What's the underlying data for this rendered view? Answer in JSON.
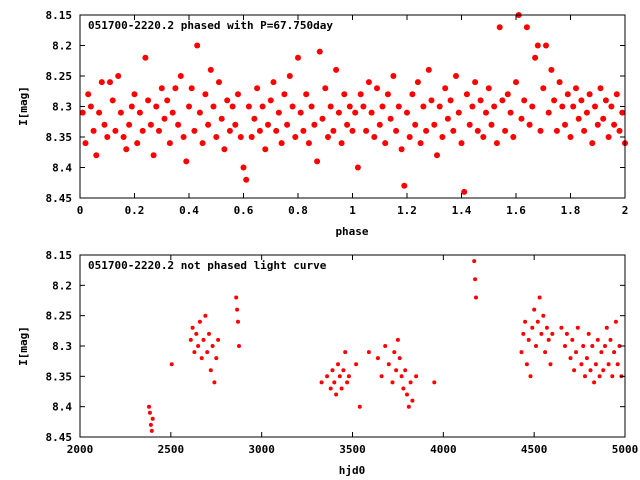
{
  "chart_data": [
    {
      "type": "scatter",
      "title": "051700-2220.2 phased with P=67.750day",
      "xlabel": "phase",
      "ylabel": "I[mag]",
      "xlim": [
        0,
        2
      ],
      "ylim": [
        8.45,
        8.15
      ],
      "y_inverted": true,
      "xticks": [
        "0",
        "0.2",
        "0.4",
        "0.6",
        "0.8",
        "1",
        "1.2",
        "1.4",
        "1.6",
        "1.8",
        "2"
      ],
      "yticks": [
        "8.15",
        "8.2",
        "8.25",
        "8.3",
        "8.35",
        "8.4",
        "8.45"
      ],
      "marker": "dot-large",
      "color": "#ff0000",
      "points": [
        [
          0.01,
          8.31
        ],
        [
          0.02,
          8.36
        ],
        [
          0.03,
          8.28
        ],
        [
          0.04,
          8.3
        ],
        [
          0.05,
          8.34
        ],
        [
          0.06,
          8.38
        ],
        [
          0.07,
          8.31
        ],
        [
          0.08,
          8.26
        ],
        [
          0.09,
          8.33
        ],
        [
          0.1,
          8.35
        ],
        [
          0.11,
          8.26
        ],
        [
          0.12,
          8.29
        ],
        [
          0.13,
          8.34
        ],
        [
          0.14,
          8.25
        ],
        [
          0.15,
          8.31
        ],
        [
          0.16,
          8.35
        ],
        [
          0.17,
          8.37
        ],
        [
          0.18,
          8.33
        ],
        [
          0.19,
          8.3
        ],
        [
          0.2,
          8.28
        ],
        [
          0.21,
          8.36
        ],
        [
          0.22,
          8.31
        ],
        [
          0.23,
          8.34
        ],
        [
          0.24,
          8.22
        ],
        [
          0.25,
          8.29
        ],
        [
          0.26,
          8.33
        ],
        [
          0.27,
          8.38
        ],
        [
          0.28,
          8.3
        ],
        [
          0.29,
          8.34
        ],
        [
          0.3,
          8.27
        ],
        [
          0.31,
          8.32
        ],
        [
          0.32,
          8.29
        ],
        [
          0.33,
          8.36
        ],
        [
          0.34,
          8.31
        ],
        [
          0.35,
          8.27
        ],
        [
          0.36,
          8.33
        ],
        [
          0.37,
          8.25
        ],
        [
          0.38,
          8.35
        ],
        [
          0.39,
          8.39
        ],
        [
          0.4,
          8.3
        ],
        [
          0.41,
          8.27
        ],
        [
          0.42,
          8.34
        ],
        [
          0.43,
          8.2
        ],
        [
          0.44,
          8.31
        ],
        [
          0.45,
          8.36
        ],
        [
          0.46,
          8.28
        ],
        [
          0.47,
          8.33
        ],
        [
          0.48,
          8.24
        ],
        [
          0.49,
          8.3
        ],
        [
          0.5,
          8.35
        ],
        [
          0.51,
          8.26
        ],
        [
          0.52,
          8.32
        ],
        [
          0.53,
          8.37
        ],
        [
          0.54,
          8.29
        ],
        [
          0.55,
          8.34
        ],
        [
          0.56,
          8.3
        ],
        [
          0.57,
          8.33
        ],
        [
          0.58,
          8.28
        ],
        [
          0.59,
          8.35
        ],
        [
          0.6,
          8.4
        ],
        [
          0.61,
          8.42
        ],
        [
          0.62,
          8.3
        ],
        [
          0.63,
          8.35
        ],
        [
          0.64,
          8.32
        ],
        [
          0.65,
          8.27
        ],
        [
          0.66,
          8.34
        ],
        [
          0.67,
          8.3
        ],
        [
          0.68,
          8.37
        ],
        [
          0.69,
          8.33
        ],
        [
          0.7,
          8.29
        ],
        [
          0.71,
          8.26
        ],
        [
          0.72,
          8.34
        ],
        [
          0.73,
          8.31
        ],
        [
          0.74,
          8.36
        ],
        [
          0.75,
          8.28
        ],
        [
          0.76,
          8.33
        ],
        [
          0.77,
          8.25
        ],
        [
          0.78,
          8.3
        ],
        [
          0.79,
          8.35
        ],
        [
          0.8,
          8.22
        ],
        [
          0.81,
          8.31
        ],
        [
          0.82,
          8.34
        ],
        [
          0.83,
          8.28
        ],
        [
          0.84,
          8.36
        ],
        [
          0.85,
          8.3
        ],
        [
          0.86,
          8.33
        ],
        [
          0.87,
          8.39
        ],
        [
          0.88,
          8.21
        ],
        [
          0.89,
          8.32
        ],
        [
          0.9,
          8.27
        ],
        [
          0.91,
          8.35
        ],
        [
          0.92,
          8.3
        ],
        [
          0.93,
          8.34
        ],
        [
          0.94,
          8.24
        ],
        [
          0.95,
          8.31
        ],
        [
          0.96,
          8.36
        ],
        [
          0.97,
          8.28
        ],
        [
          0.98,
          8.33
        ],
        [
          0.99,
          8.3
        ],
        [
          1.0,
          8.34
        ],
        [
          1.01,
          8.31
        ],
        [
          1.02,
          8.4
        ],
        [
          1.03,
          8.28
        ],
        [
          1.04,
          8.3
        ],
        [
          1.05,
          8.34
        ],
        [
          1.06,
          8.26
        ],
        [
          1.07,
          8.31
        ],
        [
          1.08,
          8.35
        ],
        [
          1.09,
          8.27
        ],
        [
          1.1,
          8.33
        ],
        [
          1.11,
          8.3
        ],
        [
          1.12,
          8.36
        ],
        [
          1.13,
          8.28
        ],
        [
          1.14,
          8.32
        ],
        [
          1.15,
          8.25
        ],
        [
          1.16,
          8.34
        ],
        [
          1.17,
          8.3
        ],
        [
          1.18,
          8.37
        ],
        [
          1.19,
          8.43
        ],
        [
          1.2,
          8.31
        ],
        [
          1.21,
          8.35
        ],
        [
          1.22,
          8.28
        ],
        [
          1.23,
          8.33
        ],
        [
          1.24,
          8.26
        ],
        [
          1.25,
          8.36
        ],
        [
          1.26,
          8.3
        ],
        [
          1.27,
          8.34
        ],
        [
          1.28,
          8.24
        ],
        [
          1.29,
          8.29
        ],
        [
          1.3,
          8.33
        ],
        [
          1.31,
          8.38
        ],
        [
          1.32,
          8.3
        ],
        [
          1.33,
          8.35
        ],
        [
          1.34,
          8.27
        ],
        [
          1.35,
          8.32
        ],
        [
          1.36,
          8.29
        ],
        [
          1.37,
          8.34
        ],
        [
          1.38,
          8.25
        ],
        [
          1.39,
          8.31
        ],
        [
          1.4,
          8.36
        ],
        [
          1.41,
          8.44
        ],
        [
          1.42,
          8.28
        ],
        [
          1.43,
          8.33
        ],
        [
          1.44,
          8.3
        ],
        [
          1.45,
          8.26
        ],
        [
          1.46,
          8.34
        ],
        [
          1.47,
          8.29
        ],
        [
          1.48,
          8.35
        ],
        [
          1.49,
          8.31
        ],
        [
          1.5,
          8.27
        ],
        [
          1.51,
          8.33
        ],
        [
          1.52,
          8.3
        ],
        [
          1.53,
          8.36
        ],
        [
          1.54,
          8.17
        ],
        [
          1.55,
          8.29
        ],
        [
          1.56,
          8.34
        ],
        [
          1.57,
          8.28
        ],
        [
          1.58,
          8.31
        ],
        [
          1.59,
          8.35
        ],
        [
          1.6,
          8.26
        ],
        [
          1.61,
          8.15
        ],
        [
          1.62,
          8.32
        ],
        [
          1.63,
          8.29
        ],
        [
          1.64,
          8.17
        ],
        [
          1.65,
          8.33
        ],
        [
          1.66,
          8.3
        ],
        [
          1.67,
          8.22
        ],
        [
          1.68,
          8.2
        ],
        [
          1.69,
          8.34
        ],
        [
          1.7,
          8.27
        ],
        [
          1.71,
          8.2
        ],
        [
          1.72,
          8.31
        ],
        [
          1.73,
          8.24
        ],
        [
          1.74,
          8.29
        ],
        [
          1.75,
          8.34
        ],
        [
          1.76,
          8.26
        ],
        [
          1.77,
          8.3
        ],
        [
          1.78,
          8.33
        ],
        [
          1.79,
          8.28
        ],
        [
          1.8,
          8.35
        ],
        [
          1.81,
          8.3
        ],
        [
          1.82,
          8.27
        ],
        [
          1.83,
          8.32
        ],
        [
          1.84,
          8.29
        ],
        [
          1.85,
          8.34
        ],
        [
          1.86,
          8.31
        ],
        [
          1.87,
          8.28
        ],
        [
          1.88,
          8.36
        ],
        [
          1.89,
          8.3
        ],
        [
          1.9,
          8.33
        ],
        [
          1.91,
          8.27
        ],
        [
          1.92,
          8.32
        ],
        [
          1.93,
          8.29
        ],
        [
          1.94,
          8.35
        ],
        [
          1.95,
          8.3
        ],
        [
          1.96,
          8.33
        ],
        [
          1.97,
          8.28
        ],
        [
          1.98,
          8.34
        ],
        [
          1.99,
          8.31
        ],
        [
          2.0,
          8.36
        ]
      ]
    },
    {
      "type": "scatter",
      "title": "051700-2220.2 not phased light curve",
      "xlabel": "hjd0",
      "ylabel": "I[mag]",
      "xlim": [
        2000,
        5000
      ],
      "ylim": [
        8.45,
        8.15
      ],
      "y_inverted": true,
      "xticks": [
        "2000",
        "2500",
        "3000",
        "3500",
        "4000",
        "4500",
        "5000"
      ],
      "yticks": [
        "8.15",
        "8.2",
        "8.25",
        "8.3",
        "8.35",
        "8.4",
        "8.45"
      ],
      "marker": "dot-small",
      "color": "#ff0000",
      "points": [
        [
          2380,
          8.4
        ],
        [
          2385,
          8.41
        ],
        [
          2390,
          8.43
        ],
        [
          2395,
          8.44
        ],
        [
          2400,
          8.42
        ],
        [
          2505,
          8.33
        ],
        [
          2610,
          8.29
        ],
        [
          2620,
          8.27
        ],
        [
          2630,
          8.31
        ],
        [
          2640,
          8.28
        ],
        [
          2650,
          8.3
        ],
        [
          2660,
          8.26
        ],
        [
          2670,
          8.32
        ],
        [
          2680,
          8.29
        ],
        [
          2690,
          8.25
        ],
        [
          2700,
          8.31
        ],
        [
          2710,
          8.28
        ],
        [
          2720,
          8.34
        ],
        [
          2730,
          8.3
        ],
        [
          2740,
          8.36
        ],
        [
          2750,
          8.32
        ],
        [
          2760,
          8.29
        ],
        [
          2860,
          8.22
        ],
        [
          2865,
          8.24
        ],
        [
          2870,
          8.26
        ],
        [
          2875,
          8.3
        ],
        [
          3330,
          8.36
        ],
        [
          3360,
          8.35
        ],
        [
          3380,
          8.37
        ],
        [
          3390,
          8.34
        ],
        [
          3400,
          8.36
        ],
        [
          3410,
          8.38
        ],
        [
          3420,
          8.33
        ],
        [
          3430,
          8.35
        ],
        [
          3440,
          8.37
        ],
        [
          3450,
          8.34
        ],
        [
          3460,
          8.31
        ],
        [
          3470,
          8.36
        ],
        [
          3480,
          8.35
        ],
        [
          3520,
          8.33
        ],
        [
          3540,
          8.4
        ],
        [
          3590,
          8.31
        ],
        [
          3640,
          8.32
        ],
        [
          3660,
          8.35
        ],
        [
          3680,
          8.3
        ],
        [
          3700,
          8.33
        ],
        [
          3720,
          8.36
        ],
        [
          3730,
          8.31
        ],
        [
          3740,
          8.34
        ],
        [
          3750,
          8.29
        ],
        [
          3760,
          8.32
        ],
        [
          3770,
          8.35
        ],
        [
          3780,
          8.37
        ],
        [
          3790,
          8.34
        ],
        [
          3800,
          8.38
        ],
        [
          3810,
          8.4
        ],
        [
          3820,
          8.36
        ],
        [
          3830,
          8.39
        ],
        [
          3850,
          8.35
        ],
        [
          3950,
          8.36
        ],
        [
          4170,
          8.16
        ],
        [
          4175,
          8.19
        ],
        [
          4180,
          8.22
        ],
        [
          4430,
          8.31
        ],
        [
          4440,
          8.28
        ],
        [
          4450,
          8.26
        ],
        [
          4460,
          8.33
        ],
        [
          4470,
          8.29
        ],
        [
          4480,
          8.35
        ],
        [
          4490,
          8.27
        ],
        [
          4500,
          8.24
        ],
        [
          4510,
          8.3
        ],
        [
          4520,
          8.26
        ],
        [
          4530,
          8.22
        ],
        [
          4540,
          8.28
        ],
        [
          4550,
          8.25
        ],
        [
          4560,
          8.31
        ],
        [
          4570,
          8.27
        ],
        [
          4580,
          8.29
        ],
        [
          4590,
          8.33
        ],
        [
          4600,
          8.28
        ],
        [
          4650,
          8.27
        ],
        [
          4670,
          8.3
        ],
        [
          4680,
          8.28
        ],
        [
          4700,
          8.32
        ],
        [
          4710,
          8.29
        ],
        [
          4720,
          8.34
        ],
        [
          4730,
          8.31
        ],
        [
          4740,
          8.27
        ],
        [
          4760,
          8.33
        ],
        [
          4770,
          8.3
        ],
        [
          4780,
          8.35
        ],
        [
          4790,
          8.32
        ],
        [
          4800,
          8.28
        ],
        [
          4810,
          8.34
        ],
        [
          4820,
          8.3
        ],
        [
          4830,
          8.36
        ],
        [
          4840,
          8.33
        ],
        [
          4850,
          8.29
        ],
        [
          4860,
          8.35
        ],
        [
          4870,
          8.31
        ],
        [
          4880,
          8.34
        ],
        [
          4890,
          8.3
        ],
        [
          4900,
          8.27
        ],
        [
          4910,
          8.33
        ],
        [
          4920,
          8.29
        ],
        [
          4930,
          8.35
        ],
        [
          4940,
          8.31
        ],
        [
          4950,
          8.26
        ],
        [
          4960,
          8.33
        ],
        [
          4970,
          8.3
        ],
        [
          4980,
          8.35
        ]
      ]
    }
  ]
}
